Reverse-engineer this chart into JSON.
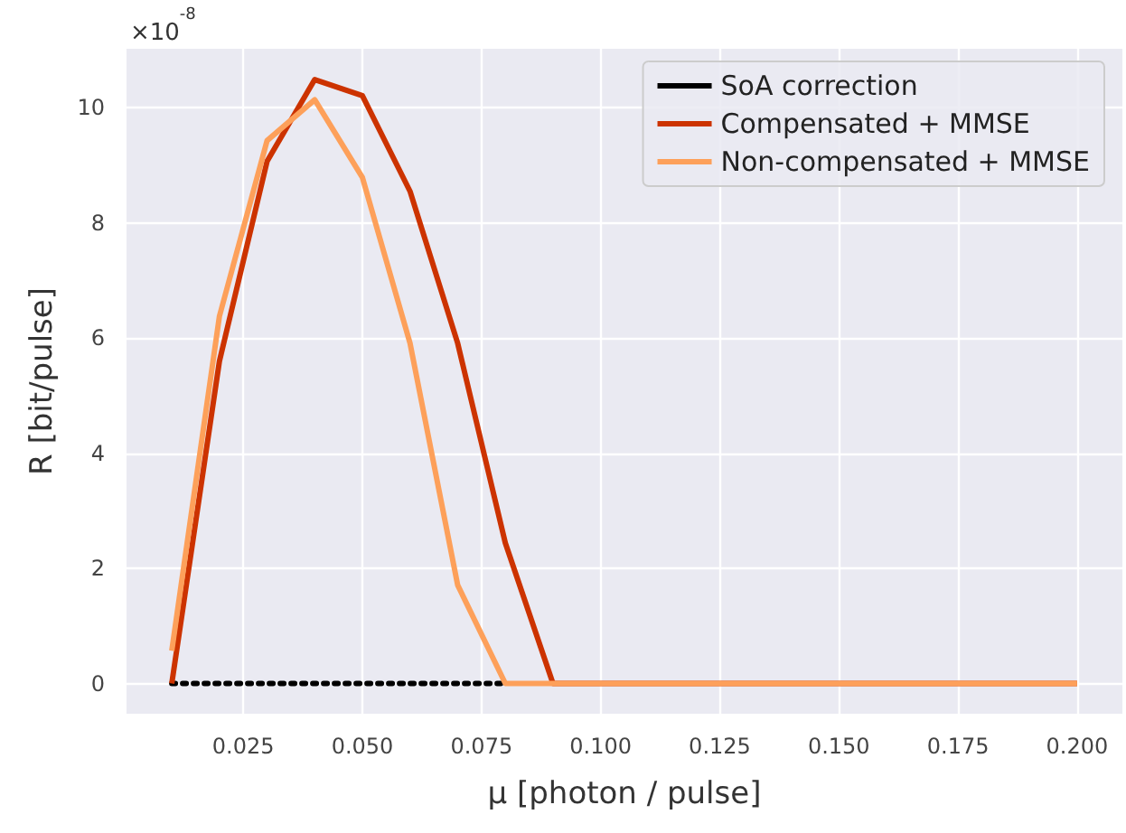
{
  "chart_data": {
    "type": "line",
    "xlabel": "μ [photon / pulse]",
    "ylabel": "R [bit/pulse]",
    "annotations": [
      "×10$^{-8}$"
    ],
    "x": [
      0.01,
      0.02,
      0.03,
      0.04,
      0.05,
      0.06,
      0.07,
      0.08,
      0.09,
      0.1,
      0.11,
      0.12,
      0.13,
      0.14,
      0.15,
      0.16,
      0.17,
      0.18,
      0.19,
      0.2
    ],
    "series": [
      {
        "name": "SoA correction",
        "color": "#000000",
        "line_style": "dotted",
        "values": [
          0,
          0,
          0,
          0,
          0,
          0,
          0,
          0,
          null,
          null,
          null,
          null,
          null,
          null,
          null,
          null,
          null,
          null,
          null,
          null
        ]
      },
      {
        "name": "Compensated + MMSE",
        "color": "#cc3300",
        "values": [
          0,
          5.6,
          9.07,
          10.49,
          10.21,
          8.55,
          5.91,
          2.44,
          0,
          0,
          0,
          0,
          0,
          0,
          0,
          0,
          0,
          0,
          0,
          0
        ]
      },
      {
        "name": "Non-compensated + MMSE",
        "color": "#fda05a",
        "values": [
          0.57,
          6.38,
          9.43,
          10.14,
          8.79,
          5.91,
          1.71,
          0,
          0,
          0,
          0,
          0,
          0,
          0,
          0,
          0,
          0,
          0,
          0,
          0
        ]
      }
    ],
    "xlim": [
      0.0005,
      0.2095
    ],
    "ylim": [
      -0.525,
      11.025
    ],
    "xticks": [
      {
        "value": 0.025,
        "label": "0.025"
      },
      {
        "value": 0.05,
        "label": "0.050"
      },
      {
        "value": 0.075,
        "label": "0.075"
      },
      {
        "value": 0.1,
        "label": "0.100"
      },
      {
        "value": 0.125,
        "label": "0.125"
      },
      {
        "value": 0.15,
        "label": "0.150"
      },
      {
        "value": 0.175,
        "label": "0.175"
      },
      {
        "value": 0.2,
        "label": "0.200"
      }
    ],
    "yticks": [
      0,
      2,
      4,
      6,
      8,
      10
    ],
    "grid": true,
    "legend": "top right",
    "marker": "none",
    "line_style": "solid"
  }
}
